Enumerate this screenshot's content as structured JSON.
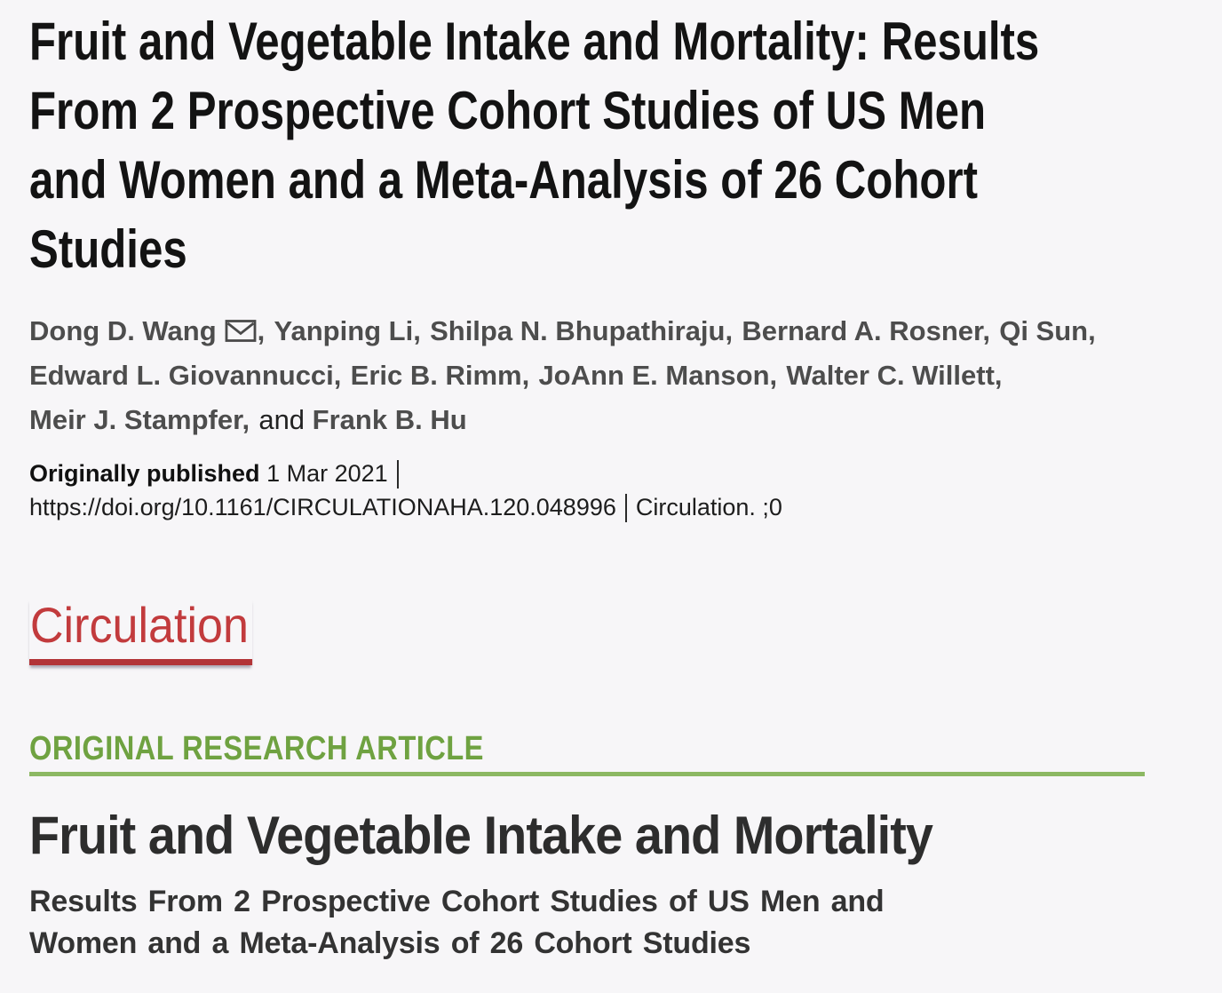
{
  "page": {
    "background": "#f7f6f8"
  },
  "masthead": {
    "title_lines": [
      "Fruit and Vegetable Intake and Mortality: Results",
      "From 2 Prospective Cohort Studies of US Men",
      "and Women and a Meta-Analysis of 26 Cohort",
      "Studies"
    ]
  },
  "authors": {
    "names": [
      "Dong D. Wang",
      "Yanping Li",
      "Shilpa N. Bhupathiraju",
      "Bernard A. Rosner",
      "Qi Sun",
      "Edward L. Giovannucci",
      "Eric B. Rimm",
      "JoAnn E. Manson",
      "Walter C. Willett",
      "Meir J. Stampfer",
      "Frank B. Hu"
    ],
    "and_label": "and",
    "corresponding_icon": "envelope-icon"
  },
  "publication": {
    "published_label": "Originally published",
    "published_date": "1 Mar 2021",
    "doi_url": "https://doi.org/10.1161/CIRCULATIONAHA.120.048996",
    "journal_citation": "Circulation. ;0"
  },
  "journal": {
    "name": "Circulation",
    "accent_color": "#c23b3d",
    "underline_color": "#b23437"
  },
  "article": {
    "category_label": "ORIGINAL RESEARCH ARTICLE",
    "category_color": "#6fa241",
    "category_line_color": "#8cb863",
    "title": "Fruit and Vegetable Intake and Mortality",
    "subtitle": "Results From 2 Prospective Cohort Studies of US Men and Women and a Meta-Analysis of 26 Cohort Studies"
  }
}
